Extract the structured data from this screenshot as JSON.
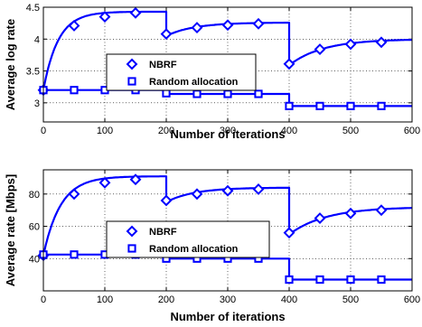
{
  "chart_data": [
    {
      "type": "line",
      "xlabel": "Number of iterations",
      "ylabel": "Average log rate",
      "xlim": [
        0,
        600
      ],
      "ylim": [
        2.7,
        4.5
      ],
      "xticks": [
        0,
        100,
        200,
        300,
        400,
        500,
        600
      ],
      "yticks": [
        3,
        3.5,
        4,
        4.5
      ],
      "grid": true,
      "legend_position": "center-left",
      "color": "#0000ff",
      "series": [
        {
          "name": "NBRF",
          "marker": "diamond",
          "segments": [
            {
              "x_start": 0,
              "x_end": 200,
              "start": 3.2,
              "end": 4.43,
              "tau": 24
            },
            {
              "x_start": 200,
              "x_end": 400,
              "start": 4.05,
              "end": 4.26,
              "tau": 45
            },
            {
              "x_start": 400,
              "x_end": 600,
              "start": 3.59,
              "end": 4.0,
              "tau": 55
            }
          ],
          "markers": {
            "x": [
              0,
              50,
              100,
              150,
              200,
              250,
              300,
              350,
              400,
              450,
              500,
              550
            ],
            "y": [
              3.2,
              4.21,
              4.35,
              4.41,
              4.08,
              4.18,
              4.22,
              4.24,
              3.61,
              3.84,
              3.92,
              3.95
            ]
          }
        },
        {
          "name": "Random allocation",
          "marker": "square",
          "x": [
            0,
            200,
            200,
            400,
            400,
            600
          ],
          "y": [
            3.2,
            3.2,
            3.14,
            3.14,
            2.95,
            2.95
          ],
          "markers": {
            "x": [
              0,
              50,
              100,
              150,
              200,
              250,
              300,
              350,
              400,
              450,
              500,
              550
            ],
            "y": [
              3.2,
              3.2,
              3.2,
              3.2,
              3.15,
              3.14,
              3.14,
              3.14,
              2.95,
              2.95,
              2.95,
              2.95
            ]
          }
        }
      ]
    },
    {
      "type": "line",
      "xlabel": "Number of iterations",
      "ylabel": "Average rate [Mbps]",
      "xlim": [
        0,
        600
      ],
      "ylim": [
        20,
        95
      ],
      "xticks": [
        0,
        100,
        200,
        300,
        400,
        500,
        600
      ],
      "yticks": [
        40,
        60,
        80
      ],
      "grid": true,
      "legend_position": "center-left",
      "color": "#0000ff",
      "series": [
        {
          "name": "NBRF",
          "marker": "diamond",
          "segments": [
            {
              "x_start": 0,
              "x_end": 200,
              "start": 42,
              "end": 91,
              "tau": 28
            },
            {
              "x_start": 200,
              "x_end": 400,
              "start": 75,
              "end": 84,
              "tau": 45
            },
            {
              "x_start": 400,
              "x_end": 600,
              "start": 55,
              "end": 72,
              "tau": 60
            }
          ],
          "markers": {
            "x": [
              0,
              50,
              100,
              150,
              200,
              250,
              300,
              350,
              400,
              450,
              500,
              550
            ],
            "y": [
              42,
              80,
              87,
              89,
              76,
              80,
              82,
              83,
              56,
              65,
              68,
              70
            ]
          }
        },
        {
          "name": "Random allocation",
          "marker": "square",
          "x": [
            0,
            200,
            200,
            400,
            400,
            600
          ],
          "y": [
            42.5,
            42.5,
            40,
            40,
            27,
            27
          ],
          "markers": {
            "x": [
              0,
              50,
              100,
              150,
              200,
              250,
              300,
              350,
              400,
              450,
              500,
              550
            ],
            "y": [
              42.5,
              42.5,
              42.5,
              42.5,
              40,
              40,
              40,
              40,
              27,
              27,
              27,
              27
            ]
          }
        }
      ]
    }
  ]
}
